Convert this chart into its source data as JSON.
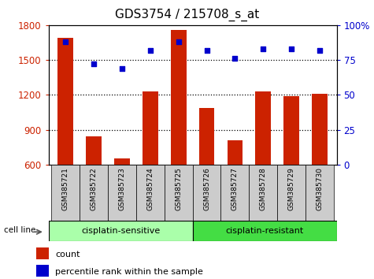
{
  "title": "GDS3754 / 215708_s_at",
  "samples": [
    "GSM385721",
    "GSM385722",
    "GSM385723",
    "GSM385724",
    "GSM385725",
    "GSM385726",
    "GSM385727",
    "GSM385728",
    "GSM385729",
    "GSM385730"
  ],
  "counts": [
    1690,
    840,
    650,
    1230,
    1760,
    1090,
    810,
    1230,
    1190,
    1210
  ],
  "percentiles": [
    88,
    72,
    69,
    82,
    88,
    82,
    76,
    83,
    83,
    82
  ],
  "ylim_left": [
    600,
    1800
  ],
  "ylim_right": [
    0,
    100
  ],
  "yticks_left": [
    600,
    900,
    1200,
    1500,
    1800
  ],
  "yticks_right": [
    0,
    25,
    50,
    75,
    100
  ],
  "bar_color": "#CC2200",
  "dot_color": "#0000CC",
  "sensitive_color": "#aaffaa",
  "resistant_color": "#44dd44",
  "xtick_bg_color": "#cccccc",
  "sensitive_label": "cisplatin-sensitive",
  "resistant_label": "cisplatin-resistant",
  "cell_line_label": "cell line",
  "legend_count": "count",
  "legend_percentile": "percentile rank within the sample",
  "n_sensitive": 5,
  "n_resistant": 5
}
